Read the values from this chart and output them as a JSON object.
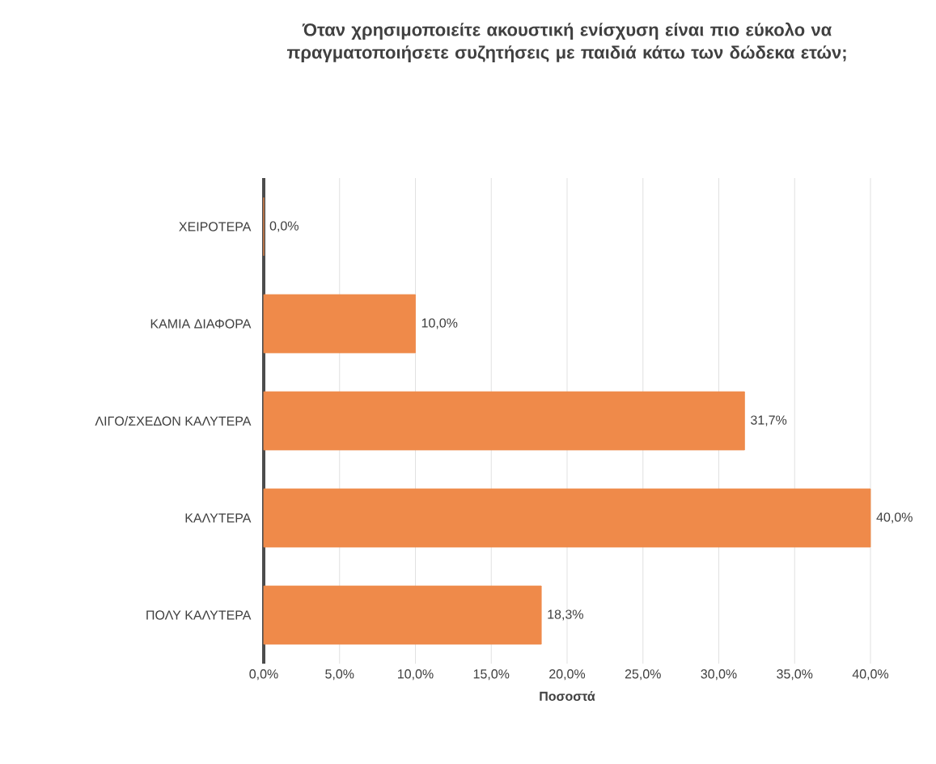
{
  "chart_data": {
    "type": "bar",
    "orientation": "horizontal",
    "title": "Όταν χρησιμοποιείτε ακουστική ενίσχυση είναι πιο εύκολο να πραγματοποιήσετε συζητήσεις με παιδιά κάτω των δώδεκα ετών;",
    "xlabel": "Ποσοστά",
    "categories": [
      "ΧΕΙΡΟΤΕΡΑ",
      "ΚΑΜΙΑ ΔΙΑΦΟΡΑ",
      "ΛΙΓΟ/ΣΧΕΔΟΝ ΚΑΛΥΤΕΡΑ",
      "ΚΑΛΥΤΕΡΑ",
      "ΠΟΛΥ ΚΑΛΥΤΕΡΑ"
    ],
    "values": [
      0.0,
      10.0,
      31.7,
      40.0,
      18.3
    ],
    "value_labels": [
      "0,0%",
      "10,0%",
      "31,7%",
      "40,0%",
      "18,3%"
    ],
    "color": "#ef8a4a",
    "xlim": [
      0,
      40
    ],
    "xticks": [
      {
        "value": 0,
        "label": "0,0%"
      },
      {
        "value": 5,
        "label": "5,0%"
      },
      {
        "value": 10,
        "label": "10,0%"
      },
      {
        "value": 15,
        "label": "15,0%"
      },
      {
        "value": 20,
        "label": "20,0%"
      },
      {
        "value": 25,
        "label": "25,0%"
      },
      {
        "value": 30,
        "label": "30,0%"
      },
      {
        "value": 35,
        "label": "35,0%"
      },
      {
        "value": 40,
        "label": "40,0%"
      }
    ],
    "grid": "x"
  }
}
